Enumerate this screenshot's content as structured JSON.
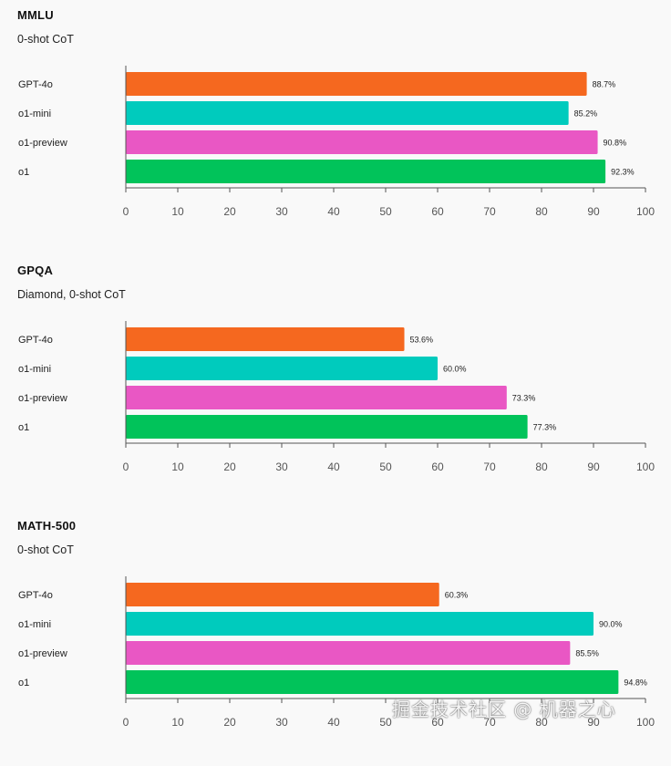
{
  "colors": {
    "gpt4o": "#f5681f",
    "o1mini": "#00cbbd",
    "o1preview": "#e957c4",
    "o1": "#01c35a",
    "axis": "#555555",
    "background": "#f9f9f9"
  },
  "watermark": "掘金技术社区 @ 机器之心",
  "chart_data": [
    {
      "type": "bar",
      "orientation": "horizontal",
      "title": "MMLU",
      "subtitle": "0-shot CoT",
      "categories": [
        "GPT-4o",
        "o1-mini",
        "o1-preview",
        "o1"
      ],
      "values": [
        88.7,
        85.2,
        90.8,
        92.3
      ],
      "value_labels": [
        "88.7%",
        "85.2%",
        "90.8%",
        "92.3%"
      ],
      "xlim": [
        0,
        100
      ],
      "xticks": [
        0,
        10,
        20,
        30,
        40,
        50,
        60,
        70,
        80,
        90,
        100
      ],
      "grid": false
    },
    {
      "type": "bar",
      "orientation": "horizontal",
      "title": "GPQA",
      "subtitle": "Diamond, 0-shot CoT",
      "categories": [
        "GPT-4o",
        "o1-mini",
        "o1-preview",
        "o1"
      ],
      "values": [
        53.6,
        60.0,
        73.3,
        77.3
      ],
      "value_labels": [
        "53.6%",
        "60.0%",
        "73.3%",
        "77.3%"
      ],
      "xlim": [
        0,
        100
      ],
      "xticks": [
        0,
        10,
        20,
        30,
        40,
        50,
        60,
        70,
        80,
        90,
        100
      ],
      "grid": false
    },
    {
      "type": "bar",
      "orientation": "horizontal",
      "title": "MATH-500",
      "subtitle": "0-shot CoT",
      "categories": [
        "GPT-4o",
        "o1-mini",
        "o1-preview",
        "o1"
      ],
      "values": [
        60.3,
        90.0,
        85.5,
        94.8
      ],
      "value_labels": [
        "60.3%",
        "90.0%",
        "85.5%",
        "94.8%"
      ],
      "xlim": [
        0,
        100
      ],
      "xticks": [
        0,
        10,
        20,
        30,
        40,
        50,
        60,
        70,
        80,
        90,
        100
      ],
      "grid": false
    }
  ]
}
